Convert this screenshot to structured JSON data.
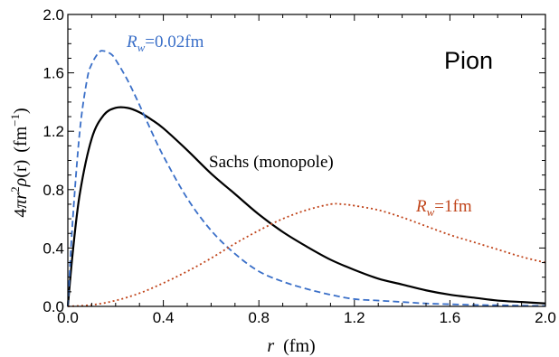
{
  "chart_data": {
    "type": "line",
    "title": "Pion",
    "xlabel": {
      "var": "r",
      "unit": "(fm)"
    },
    "ylabel": {
      "pre": "4",
      "pi": "π",
      "r": "r",
      "sup": "2",
      "rho": "ρ",
      "arg": "(r)",
      "unit": "(fm",
      "unit_sup": "−1",
      "unit_close": ")"
    },
    "xlim": [
      0,
      2.0
    ],
    "ylim": [
      0,
      2.0
    ],
    "xticks": [
      0.0,
      0.4,
      0.8,
      1.2,
      1.6,
      2.0
    ],
    "xtick_labels": [
      "0.0",
      "0.4",
      "0.8",
      "1.2",
      "1.6",
      "2.0"
    ],
    "yticks": [
      0.0,
      0.4,
      0.8,
      1.2,
      1.6,
      2.0
    ],
    "ytick_labels": [
      "0.0",
      "0.4",
      "0.8",
      "1.2",
      "1.6",
      "2.0"
    ],
    "grid": false,
    "series": [
      {
        "name": "Sachs (monopole)",
        "color": "#000000",
        "style": "solid",
        "x": [
          0.0,
          0.02,
          0.05,
          0.1,
          0.15,
          0.2,
          0.25,
          0.3,
          0.35,
          0.4,
          0.5,
          0.6,
          0.7,
          0.8,
          0.9,
          1.0,
          1.1,
          1.2,
          1.3,
          1.4,
          1.5,
          1.6,
          1.7,
          1.8,
          1.9,
          2.0
        ],
        "y": [
          0.0,
          0.36,
          0.77,
          1.15,
          1.31,
          1.36,
          1.36,
          1.33,
          1.28,
          1.22,
          1.07,
          0.91,
          0.77,
          0.63,
          0.51,
          0.41,
          0.32,
          0.25,
          0.19,
          0.15,
          0.11,
          0.08,
          0.06,
          0.04,
          0.03,
          0.02
        ]
      },
      {
        "name": "R_w=0.02fm",
        "label_main": "R",
        "label_sub": "w",
        "label_value": "=0.02fm",
        "color": "#3a6fc8",
        "style": "dashed",
        "x": [
          0.0,
          0.02,
          0.05,
          0.08,
          0.1,
          0.13,
          0.15,
          0.18,
          0.2,
          0.25,
          0.3,
          0.35,
          0.4,
          0.5,
          0.6,
          0.7,
          0.8,
          0.9,
          1.0,
          1.1,
          1.2,
          1.3,
          1.4,
          1.5,
          1.6,
          1.7,
          1.8,
          1.9,
          2.0
        ],
        "y": [
          0.0,
          0.58,
          1.2,
          1.55,
          1.66,
          1.74,
          1.75,
          1.73,
          1.69,
          1.55,
          1.38,
          1.2,
          1.03,
          0.74,
          0.52,
          0.36,
          0.24,
          0.17,
          0.12,
          0.08,
          0.05,
          0.04,
          0.03,
          0.02,
          0.015,
          0.01,
          0.008,
          0.005,
          0.003
        ]
      },
      {
        "name": "R_w=1fm",
        "label_main": "R",
        "label_sub": "w",
        "label_value": "=1fm",
        "color": "#c0441a",
        "style": "dotted",
        "x": [
          0.0,
          0.1,
          0.2,
          0.3,
          0.4,
          0.5,
          0.6,
          0.7,
          0.8,
          0.9,
          1.0,
          1.1,
          1.15,
          1.2,
          1.3,
          1.4,
          1.5,
          1.6,
          1.7,
          1.8,
          1.9,
          2.0
        ],
        "y": [
          0.0,
          0.01,
          0.04,
          0.09,
          0.16,
          0.24,
          0.33,
          0.43,
          0.52,
          0.6,
          0.66,
          0.7,
          0.7,
          0.69,
          0.66,
          0.61,
          0.55,
          0.49,
          0.44,
          0.39,
          0.34,
          0.3
        ]
      }
    ],
    "annotations": [
      "Sachs (monopole)",
      "R_w=0.02fm",
      "R_w=1fm",
      "Pion"
    ]
  }
}
